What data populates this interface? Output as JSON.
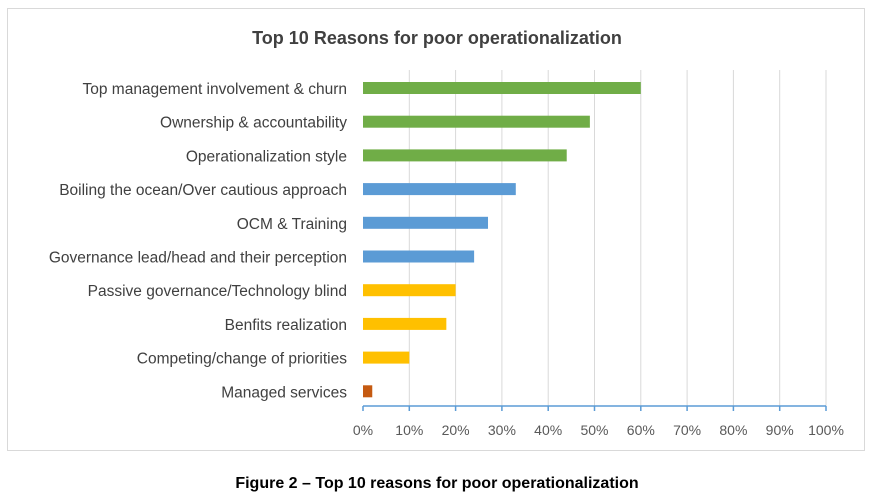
{
  "chart_data": {
    "type": "bar",
    "orientation": "horizontal",
    "title": "Top 10 Reasons for poor operationalization",
    "xlabel": "",
    "ylabel": "",
    "categories": [
      "Top management involvement & churn",
      "Ownership & accountability",
      "Operationalization style",
      "Boiling the ocean/Over cautious approach",
      "OCM & Training",
      "Governance lead/head and their perception",
      "Passive governance/Technology blind",
      "Benfits realization",
      "Competing/change of priorities",
      "Managed services"
    ],
    "values": [
      60,
      49,
      44,
      33,
      27,
      24,
      20,
      18,
      10,
      2
    ],
    "colors": [
      "#70ad47",
      "#70ad47",
      "#70ad47",
      "#5b9bd5",
      "#5b9bd5",
      "#5b9bd5",
      "#ffc000",
      "#ffc000",
      "#ffc000",
      "#c55a11"
    ],
    "xlim": [
      0,
      100
    ],
    "x_ticks": [
      "0%",
      "10%",
      "20%",
      "30%",
      "40%",
      "50%",
      "60%",
      "70%",
      "80%",
      "90%",
      "100%"
    ],
    "grid": "vertical",
    "legend": "none"
  },
  "figure_caption": "Figure 2 – Top 10 reasons for poor operationalization"
}
